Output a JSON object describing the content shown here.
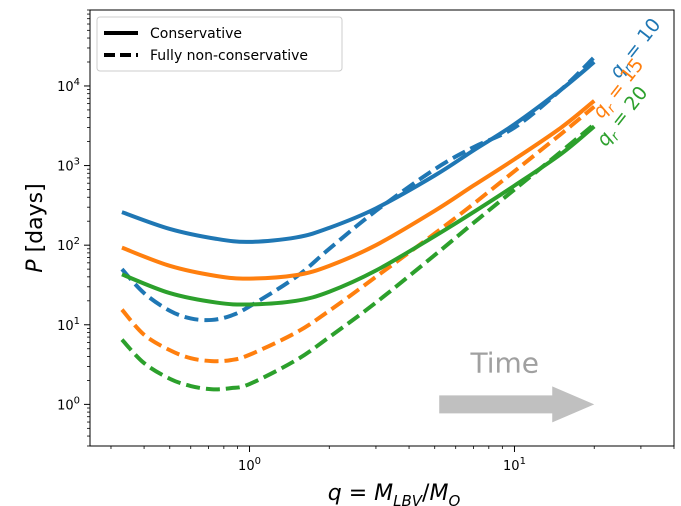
{
  "chart_data": {
    "type": "line",
    "xlabel": "q = M_LBV/M_O",
    "ylabel": "P [days]",
    "xscale": "log",
    "yscale": "log",
    "xlim": [
      0.25,
      40
    ],
    "ylim": [
      0.3,
      90000
    ],
    "x_ticks": [
      {
        "value": 1,
        "base": "10",
        "exp": "0"
      },
      {
        "value": 10,
        "base": "10",
        "exp": "1"
      }
    ],
    "y_ticks": [
      {
        "value": 1,
        "base": "10",
        "exp": "0"
      },
      {
        "value": 10,
        "base": "10",
        "exp": "1"
      },
      {
        "value": 100,
        "base": "10",
        "exp": "2"
      },
      {
        "value": 1000,
        "base": "10",
        "exp": "3"
      },
      {
        "value": 10000,
        "base": "10",
        "exp": "4"
      }
    ],
    "legend": {
      "placement": "upper-left",
      "entries": [
        {
          "label": "Conservative",
          "style": "solid"
        },
        {
          "label": "Fully non-conservative",
          "style": "dashed"
        }
      ]
    },
    "colors": {
      "q10": "#1f77b4",
      "q15": "#ff7f0e",
      "q20": "#2ca02c"
    },
    "series": [
      {
        "group": "q10",
        "style": "solid",
        "x": [
          0.33,
          0.5,
          0.75,
          1.0,
          1.5,
          2.0,
          3.0,
          5.0,
          7.0,
          10.0,
          15.0,
          20.0
        ],
        "y": [
          260,
          160,
          120,
          110,
          125,
          165,
          290,
          750,
          1550,
          3300,
          9000,
          20000
        ]
      },
      {
        "group": "q10",
        "style": "dashed",
        "x": [
          0.33,
          0.4,
          0.5,
          0.6,
          0.72,
          0.85,
          1.0,
          1.5,
          2.0,
          3.0,
          5.0,
          7.0,
          10.0,
          15.0,
          20.0
        ],
        "y": [
          50,
          25,
          15,
          12,
          11.5,
          13,
          17,
          40,
          90,
          270,
          900,
          1700,
          3000,
          9000,
          23000
        ]
      },
      {
        "group": "q15",
        "style": "solid",
        "x": [
          0.33,
          0.5,
          0.75,
          1.0,
          1.5,
          2.0,
          3.0,
          5.0,
          7.0,
          10.0,
          15.0,
          20.0
        ],
        "y": [
          93,
          55,
          41,
          38,
          42,
          55,
          100,
          270,
          560,
          1200,
          3000,
          6500
        ]
      },
      {
        "group": "q15",
        "style": "dashed",
        "x": [
          0.33,
          0.4,
          0.5,
          0.6,
          0.72,
          0.85,
          1.0,
          1.5,
          2.0,
          3.0,
          5.0,
          7.0,
          10.0,
          15.0,
          20.0
        ],
        "y": [
          15.5,
          7.5,
          4.8,
          3.8,
          3.5,
          3.6,
          4.2,
          8,
          15,
          40,
          140,
          330,
          850,
          2500,
          5500
        ]
      },
      {
        "group": "q20",
        "style": "solid",
        "x": [
          0.33,
          0.5,
          0.75,
          1.0,
          1.5,
          2.0,
          3.0,
          5.0,
          7.0,
          10.0,
          15.0,
          20.0
        ],
        "y": [
          43,
          25,
          19,
          18,
          20,
          26,
          48,
          130,
          260,
          560,
          1400,
          3100
        ]
      },
      {
        "group": "q20",
        "style": "dashed",
        "x": [
          0.33,
          0.4,
          0.5,
          0.6,
          0.72,
          0.85,
          1.0,
          1.5,
          2.0,
          3.0,
          5.0,
          7.0,
          10.0,
          15.0,
          20.0
        ],
        "y": [
          6.5,
          3.3,
          2.1,
          1.7,
          1.55,
          1.6,
          1.8,
          3.6,
          7,
          19,
          75,
          190,
          500,
          1500,
          3300
        ]
      }
    ],
    "curve_labels": [
      {
        "group": "q10",
        "sym": "q",
        "sub": "r",
        "text": " = 10"
      },
      {
        "group": "q15",
        "sym": "q",
        "sub": "r",
        "text": " = 15"
      },
      {
        "group": "q20",
        "sym": "q",
        "sub": "r",
        "text": " = 20"
      }
    ],
    "annotation": {
      "text": "Time",
      "arrow_from_x": 5.2,
      "arrow_to_x": 20,
      "arrow_y": 1.0,
      "color": "#c0c0c0",
      "text_color": "#a0a0a0"
    }
  }
}
